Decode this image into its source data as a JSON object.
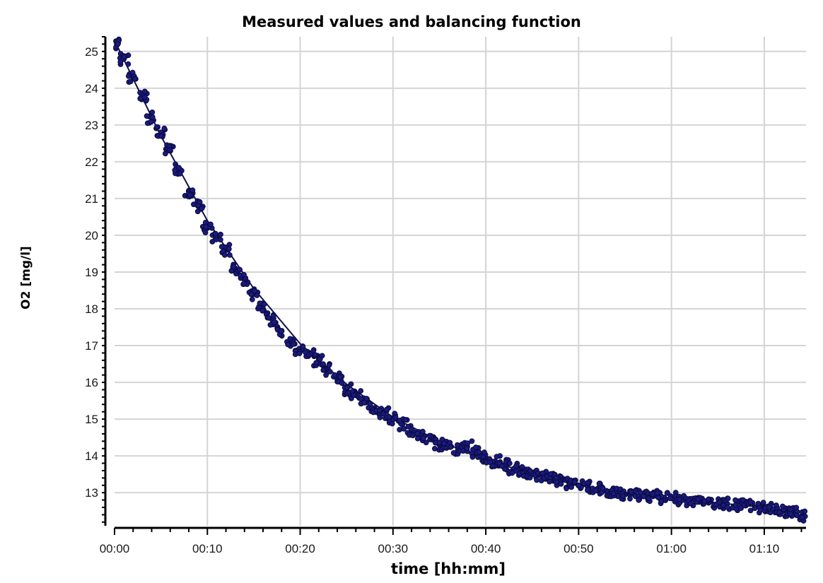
{
  "chart_data": {
    "type": "scatter",
    "title": "Measured values and balancing function",
    "xlabel": "time [hh:mm]",
    "ylabel": "O2 [mg/l]",
    "x_unit": "minutes",
    "xlim": [
      0,
      74.5
    ],
    "ylim": [
      12.1,
      25.4
    ],
    "x_ticks": [
      0,
      10,
      20,
      30,
      40,
      50,
      60,
      70
    ],
    "x_tick_labels": [
      "00:00",
      "00:10",
      "00:20",
      "00:30",
      "00:40",
      "00:50",
      "01:00",
      "01:10"
    ],
    "y_ticks": [
      13,
      14,
      15,
      16,
      17,
      18,
      19,
      20,
      21,
      22,
      23,
      24,
      25
    ],
    "y_tick_labels": [
      "13",
      "14",
      "15",
      "16",
      "17",
      "18",
      "19",
      "20",
      "21",
      "22",
      "23",
      "24",
      "25"
    ],
    "grid": true,
    "legend": false,
    "colors": {
      "points": "#1a1a80",
      "point_stroke": "#0a0a3a",
      "grid": "#d4d4d4",
      "axis": "#000000"
    },
    "series": [
      {
        "kind": "points",
        "x": [
          0.3,
          1.0,
          2.0,
          3.0,
          4.0,
          5.0,
          6.0,
          7.0,
          8.0,
          9.0,
          10.0,
          11.0,
          12.0,
          13.0,
          14.0,
          15.0,
          16.0,
          17.0,
          18.0,
          19.0,
          20.0,
          21.0,
          22.0,
          23.0,
          24.0,
          25.0,
          26.0,
          27.0,
          28.0,
          29.0,
          30.0,
          31.0,
          32.0,
          33.0,
          34.0,
          35.0,
          36.0,
          37.0,
          38.0,
          39.0,
          40.0,
          41.0,
          42.0,
          43.0,
          44.0,
          45.0,
          46.0,
          47.0,
          48.0,
          49.0,
          50.0,
          51.0,
          52.0,
          53.0,
          54.0,
          55.0,
          56.0,
          57.0,
          58.0,
          59.0,
          60.0,
          61.0,
          62.0,
          63.0,
          64.0,
          65.0,
          66.0,
          67.0,
          68.0,
          69.0,
          70.0,
          71.0,
          72.0,
          73.0,
          74.0
        ],
        "y": [
          25.2,
          24.8,
          24.3,
          23.8,
          23.2,
          22.8,
          22.3,
          21.8,
          21.2,
          20.8,
          20.2,
          19.9,
          19.6,
          19.1,
          18.8,
          18.4,
          18.0,
          17.7,
          17.4,
          17.1,
          16.85,
          16.8,
          16.6,
          16.35,
          16.1,
          15.8,
          15.65,
          15.45,
          15.3,
          15.15,
          15.0,
          14.85,
          14.7,
          14.55,
          14.45,
          14.3,
          14.25,
          14.2,
          14.25,
          14.1,
          13.95,
          13.85,
          13.75,
          13.65,
          13.55,
          13.5,
          13.45,
          13.4,
          13.3,
          13.25,
          13.2,
          13.15,
          13.1,
          13.05,
          13.0,
          12.95,
          12.95,
          12.9,
          12.9,
          12.85,
          12.85,
          12.8,
          12.8,
          12.75,
          12.75,
          12.7,
          12.7,
          12.65,
          12.65,
          12.6,
          12.6,
          12.55,
          12.5,
          12.45,
          12.35
        ]
      },
      {
        "kind": "balancing-function",
        "x": [
          0,
          5,
          10,
          15,
          20,
          25,
          30,
          35,
          40,
          45,
          50,
          55,
          60,
          65,
          70,
          74
        ],
        "y": [
          25.3,
          22.7,
          20.4,
          18.55,
          17.05,
          15.95,
          15.05,
          14.4,
          13.9,
          13.5,
          13.2,
          13.0,
          12.85,
          12.72,
          12.6,
          12.48
        ]
      }
    ]
  }
}
